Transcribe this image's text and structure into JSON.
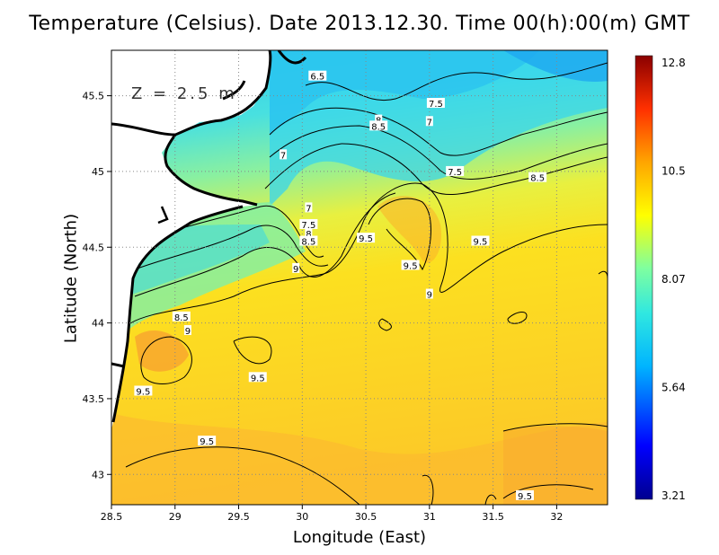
{
  "title": "Temperature (Celsius). Date 2013.12.30. Time 00(h):00(m) GMT",
  "depth_label": "Z = 2.5 m",
  "x_axis": {
    "label": "Longitude (East)",
    "min": 28.5,
    "max": 32.4,
    "ticks": [
      "28.5",
      "29",
      "29.5",
      "30",
      "30.5",
      "31",
      "31.5",
      "32"
    ]
  },
  "y_axis": {
    "label": "Latitude (North)",
    "min": 42.8,
    "max": 45.8,
    "ticks": [
      "43",
      "43.5",
      "44",
      "44.5",
      "45",
      "45.5"
    ]
  },
  "colorbar": {
    "min": 3.21,
    "max": 12.8,
    "labels": [
      "12.8",
      "10.5",
      "8.07",
      "5.64",
      "3.21"
    ],
    "colors": [
      "#00008f",
      "#0000ff",
      "#00bfff",
      "#40e0d0",
      "#7fffa0",
      "#ffff00",
      "#ffa500",
      "#ff4000",
      "#b00000",
      "#800000"
    ]
  },
  "contour_labels": [
    {
      "text": "6.5",
      "lon": 30.12,
      "lat": 45.63
    },
    {
      "text": "7.5",
      "lon": 31.05,
      "lat": 45.45
    },
    {
      "text": "7",
      "lon": 31.0,
      "lat": 45.33
    },
    {
      "text": "8",
      "lon": 30.6,
      "lat": 45.34
    },
    {
      "text": "8.5",
      "lon": 30.6,
      "lat": 45.3
    },
    {
      "text": "7",
      "lon": 29.85,
      "lat": 45.11
    },
    {
      "text": "7.5",
      "lon": 31.2,
      "lat": 45.0
    },
    {
      "text": "8.5",
      "lon": 31.85,
      "lat": 44.96
    },
    {
      "text": "7",
      "lon": 30.05,
      "lat": 44.76
    },
    {
      "text": "7.5",
      "lon": 30.05,
      "lat": 44.65
    },
    {
      "text": "8",
      "lon": 30.05,
      "lat": 44.59
    },
    {
      "text": "8.5",
      "lon": 30.05,
      "lat": 44.54
    },
    {
      "text": "9.5",
      "lon": 30.5,
      "lat": 44.56
    },
    {
      "text": "9.5",
      "lon": 31.4,
      "lat": 44.54
    },
    {
      "text": "9.5",
      "lon": 30.85,
      "lat": 44.38
    },
    {
      "text": "9",
      "lon": 29.95,
      "lat": 44.36
    },
    {
      "text": "9",
      "lon": 31.0,
      "lat": 44.19
    },
    {
      "text": "8.5",
      "lon": 29.05,
      "lat": 44.04
    },
    {
      "text": "9",
      "lon": 29.1,
      "lat": 43.95
    },
    {
      "text": "9.5",
      "lon": 29.65,
      "lat": 43.64
    },
    {
      "text": "9.5",
      "lon": 28.75,
      "lat": 43.55
    },
    {
      "text": "9.5",
      "lon": 29.25,
      "lat": 43.22
    },
    {
      "text": "9.5",
      "lon": 31.75,
      "lat": 42.86
    }
  ]
}
